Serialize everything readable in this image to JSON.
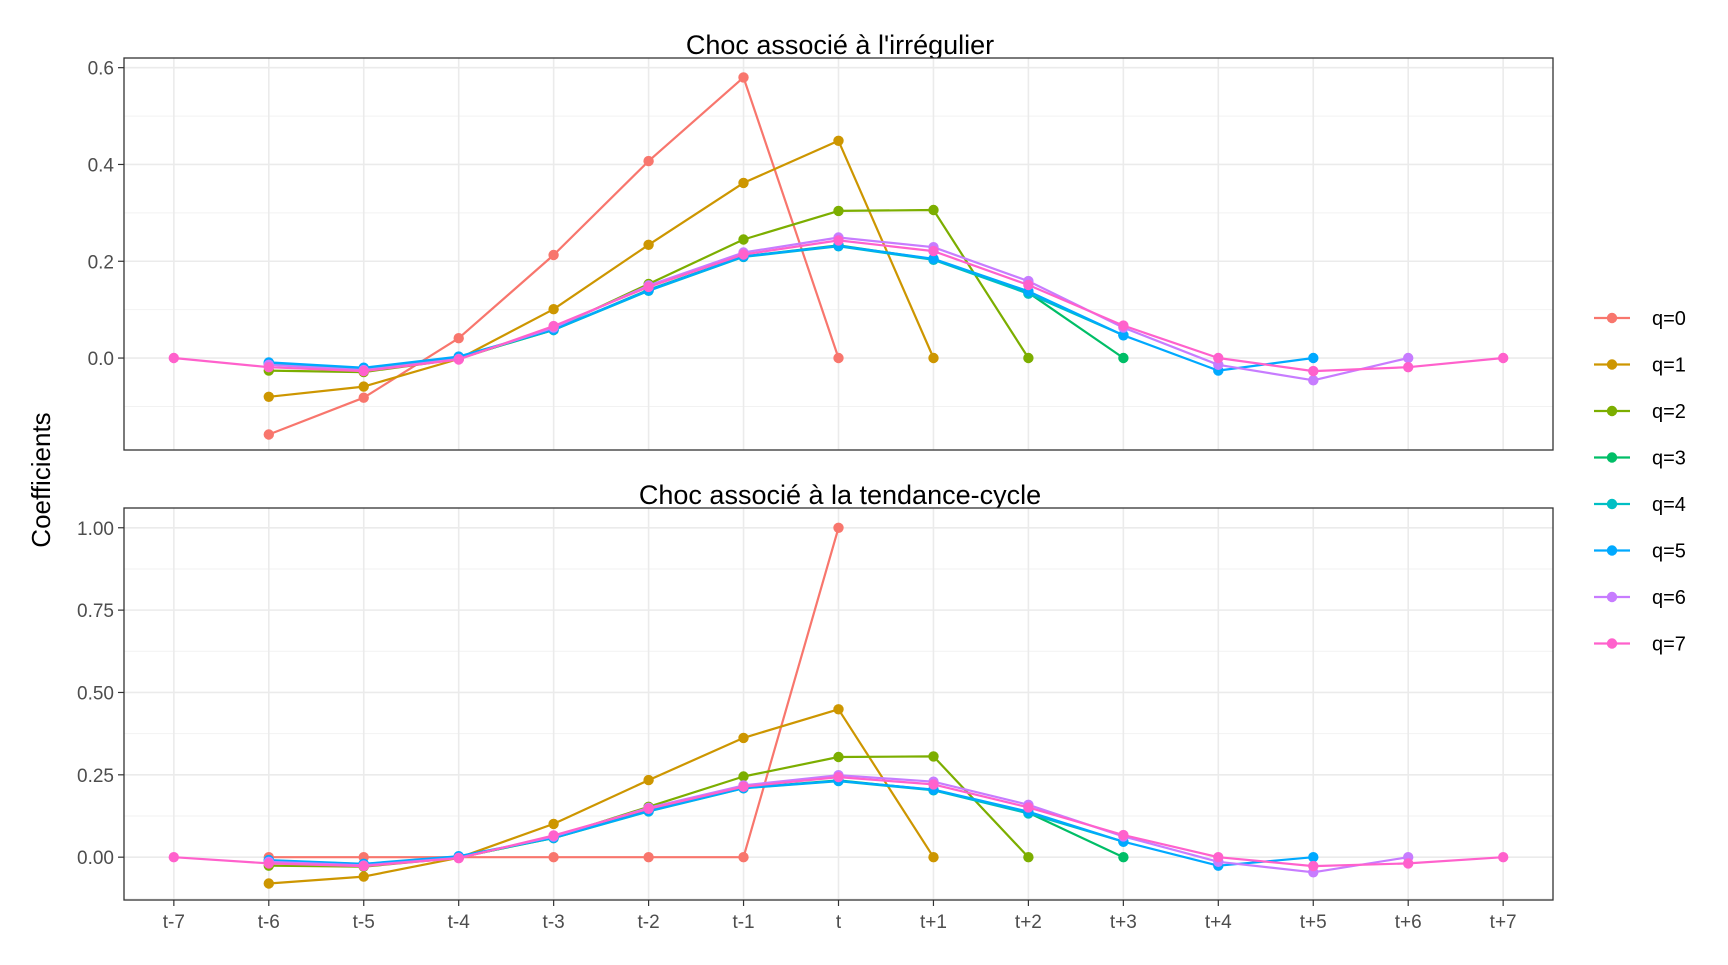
{
  "y_axis_title": "Coefficients",
  "legend_labels": [
    "q=0",
    "q=1",
    "q=2",
    "q=3",
    "q=4",
    "q=5",
    "q=6",
    "q=7"
  ],
  "series_colors": [
    "#F8766D",
    "#CD9600",
    "#7CAE00",
    "#00BE67",
    "#00BFC4",
    "#00A9FF",
    "#C77CFF",
    "#FF61CC"
  ],
  "chart_data": [
    {
      "type": "line",
      "title": "Choc associé à l'irrégulier",
      "xlabel": "",
      "ylabel": "Coefficients",
      "categories": [
        "t-7",
        "t-6",
        "t-5",
        "t-4",
        "t-3",
        "t-2",
        "t-1",
        "t",
        "t+1",
        "t+2",
        "t+3",
        "t+4",
        "t+5",
        "t+6",
        "t+7"
      ],
      "y_ticks": [
        {
          "value": 0.0,
          "label": "0.0"
        },
        {
          "value": 0.2,
          "label": "0.2"
        },
        {
          "value": 0.4,
          "label": "0.4"
        },
        {
          "value": 0.6,
          "label": "0.6"
        }
      ],
      "ylim": [
        -0.19,
        0.62
      ],
      "grid": true,
      "legend": "right",
      "series": [
        {
          "name": "q=0",
          "x": [
            "t-6",
            "t-5",
            "t-4",
            "t-3",
            "t-2",
            "t-1",
            "t"
          ],
          "values": [
            -0.158,
            -0.082,
            0.041,
            0.213,
            0.407,
            0.58,
            0.0
          ]
        },
        {
          "name": "q=1",
          "x": [
            "t-6",
            "t-5",
            "t-4",
            "t-3",
            "t-2",
            "t-1",
            "t",
            "t+1"
          ],
          "values": [
            -0.08,
            -0.059,
            -0.002,
            0.101,
            0.234,
            0.362,
            0.449,
            0.0
          ]
        },
        {
          "name": "q=2",
          "x": [
            "t-6",
            "t-5",
            "t-4",
            "t-3",
            "t-2",
            "t-1",
            "t",
            "t+1",
            "t+2"
          ],
          "values": [
            -0.026,
            -0.029,
            -0.002,
            0.061,
            0.153,
            0.245,
            0.304,
            0.306,
            0.0
          ]
        },
        {
          "name": "q=3",
          "x": [
            "t-6",
            "t-5",
            "t-4",
            "t-3",
            "t-2",
            "t-1",
            "t",
            "t+1",
            "t+2",
            "t+3"
          ],
          "values": [
            -0.012,
            -0.022,
            0.0,
            0.058,
            0.141,
            0.21,
            0.233,
            0.204,
            0.135,
            0.0
          ]
        },
        {
          "name": "q=4",
          "x": [
            "t-6",
            "t-5",
            "t-4",
            "t-3",
            "t-2",
            "t-1",
            "t",
            "t+1",
            "t+2",
            "t+3"
          ],
          "values": [
            -0.01,
            -0.021,
            0.002,
            0.058,
            0.139,
            0.209,
            0.231,
            0.203,
            0.133,
            0.047
          ]
        },
        {
          "name": "q=5",
          "x": [
            "t-6",
            "t-5",
            "t-4",
            "t-3",
            "t-2",
            "t-1",
            "t",
            "t+1",
            "t+2",
            "t+3",
            "t+4",
            "t+5"
          ],
          "values": [
            -0.009,
            -0.02,
            0.003,
            0.059,
            0.14,
            0.21,
            0.232,
            0.205,
            0.138,
            0.047,
            -0.026,
            0.0
          ]
        },
        {
          "name": "q=6",
          "x": [
            "t-6",
            "t-5",
            "t-4",
            "t-3",
            "t-2",
            "t-1",
            "t",
            "t+1",
            "t+2",
            "t+3",
            "t+4",
            "t+5",
            "t+6"
          ],
          "values": [
            -0.014,
            -0.025,
            -0.002,
            0.063,
            0.15,
            0.218,
            0.249,
            0.229,
            0.159,
            0.063,
            -0.014,
            -0.046,
            0.0
          ]
        },
        {
          "name": "q=7",
          "x": [
            "t-7",
            "t-6",
            "t-5",
            "t-4",
            "t-3",
            "t-2",
            "t-1",
            "t",
            "t+1",
            "t+2",
            "t+3",
            "t+4",
            "t+5",
            "t+6",
            "t+7"
          ],
          "values": [
            0.0,
            -0.019,
            -0.027,
            -0.003,
            0.066,
            0.147,
            0.214,
            0.243,
            0.221,
            0.151,
            0.067,
            0.0,
            -0.027,
            -0.019,
            0.0
          ]
        }
      ]
    },
    {
      "type": "line",
      "title": "Choc associé à la tendance-cycle",
      "xlabel": "",
      "ylabel": "Coefficients",
      "categories": [
        "t-7",
        "t-6",
        "t-5",
        "t-4",
        "t-3",
        "t-2",
        "t-1",
        "t",
        "t+1",
        "t+2",
        "t+3",
        "t+4",
        "t+5",
        "t+6",
        "t+7"
      ],
      "y_ticks": [
        {
          "value": 0.0,
          "label": "0.00"
        },
        {
          "value": 0.25,
          "label": "0.25"
        },
        {
          "value": 0.5,
          "label": "0.50"
        },
        {
          "value": 0.75,
          "label": "0.75"
        },
        {
          "value": 1.0,
          "label": "1.00"
        }
      ],
      "ylim": [
        -0.13,
        1.06
      ],
      "grid": true,
      "legend": "right",
      "series": [
        {
          "name": "q=0",
          "x": [
            "t-6",
            "t-5",
            "t-4",
            "t-3",
            "t-2",
            "t-1",
            "t"
          ],
          "values": [
            0.0,
            0.0,
            0.0,
            0.0,
            0.0,
            0.0,
            1.0
          ]
        },
        {
          "name": "q=1",
          "x": [
            "t-6",
            "t-5",
            "t-4",
            "t-3",
            "t-2",
            "t-1",
            "t",
            "t+1"
          ],
          "values": [
            -0.08,
            -0.059,
            -0.002,
            0.101,
            0.234,
            0.362,
            0.449,
            0.0
          ]
        },
        {
          "name": "q=2",
          "x": [
            "t-6",
            "t-5",
            "t-4",
            "t-3",
            "t-2",
            "t-1",
            "t",
            "t+1",
            "t+2"
          ],
          "values": [
            -0.026,
            -0.029,
            -0.002,
            0.061,
            0.153,
            0.245,
            0.304,
            0.306,
            0.0
          ]
        },
        {
          "name": "q=3",
          "x": [
            "t-6",
            "t-5",
            "t-4",
            "t-3",
            "t-2",
            "t-1",
            "t",
            "t+1",
            "t+2",
            "t+3"
          ],
          "values": [
            -0.012,
            -0.022,
            0.0,
            0.058,
            0.141,
            0.21,
            0.233,
            0.204,
            0.135,
            0.0
          ]
        },
        {
          "name": "q=4",
          "x": [
            "t-6",
            "t-5",
            "t-4",
            "t-3",
            "t-2",
            "t-1",
            "t",
            "t+1",
            "t+2",
            "t+3"
          ],
          "values": [
            -0.01,
            -0.021,
            0.002,
            0.058,
            0.139,
            0.209,
            0.231,
            0.203,
            0.133,
            0.047
          ]
        },
        {
          "name": "q=5",
          "x": [
            "t-6",
            "t-5",
            "t-4",
            "t-3",
            "t-2",
            "t-1",
            "t",
            "t+1",
            "t+2",
            "t+3",
            "t+4",
            "t+5"
          ],
          "values": [
            -0.009,
            -0.02,
            0.003,
            0.059,
            0.14,
            0.21,
            0.232,
            0.205,
            0.138,
            0.047,
            -0.026,
            0.0
          ]
        },
        {
          "name": "q=6",
          "x": [
            "t-6",
            "t-5",
            "t-4",
            "t-3",
            "t-2",
            "t-1",
            "t",
            "t+1",
            "t+2",
            "t+3",
            "t+4",
            "t+5",
            "t+6"
          ],
          "values": [
            -0.014,
            -0.025,
            -0.002,
            0.063,
            0.15,
            0.218,
            0.249,
            0.229,
            0.159,
            0.063,
            -0.014,
            -0.046,
            0.0
          ]
        },
        {
          "name": "q=7",
          "x": [
            "t-7",
            "t-6",
            "t-5",
            "t-4",
            "t-3",
            "t-2",
            "t-1",
            "t",
            "t+1",
            "t+2",
            "t+3",
            "t+4",
            "t+5",
            "t+6",
            "t+7"
          ],
          "values": [
            0.0,
            -0.019,
            -0.027,
            -0.003,
            0.066,
            0.147,
            0.214,
            0.243,
            0.221,
            0.151,
            0.067,
            0.0,
            -0.027,
            -0.019,
            0.0
          ]
        }
      ]
    }
  ]
}
